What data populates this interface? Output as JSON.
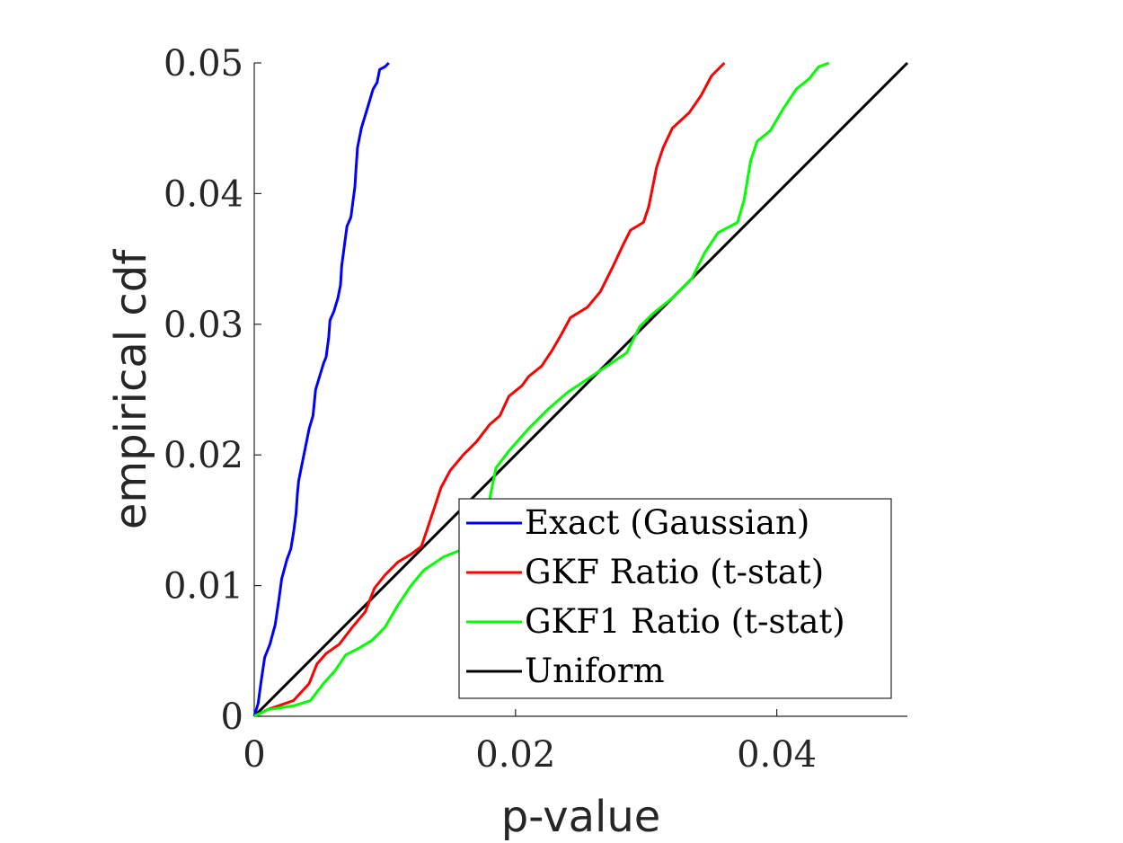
{
  "chart_data": {
    "type": "line",
    "title": "",
    "xlabel": "p-value",
    "ylabel": "empirical cdf",
    "xlim": [
      0,
      0.05
    ],
    "ylim": [
      0,
      0.05
    ],
    "x_ticks": [
      0,
      0.02,
      0.04
    ],
    "x_tick_labels": [
      "0",
      "0.02",
      "0.04"
    ],
    "y_ticks": [
      0,
      0.01,
      0.02,
      0.03,
      0.04,
      0.05
    ],
    "y_tick_labels": [
      "0",
      "0.01",
      "0.02",
      "0.03",
      "0.04",
      "0.05"
    ],
    "grid": false,
    "legend_position": "bottom-right",
    "series": [
      {
        "name": "Exact (Gaussian)",
        "color": "#0000ff",
        "points": [
          [
            0,
            0
          ],
          [
            0.0003,
            0.001
          ],
          [
            0.0005,
            0.0025
          ],
          [
            0.0008,
            0.0045
          ],
          [
            0.0012,
            0.0055
          ],
          [
            0.0016,
            0.007
          ],
          [
            0.0019,
            0.009
          ],
          [
            0.0021,
            0.0105
          ],
          [
            0.0025,
            0.012
          ],
          [
            0.0028,
            0.0128
          ],
          [
            0.003,
            0.014
          ],
          [
            0.0032,
            0.0155
          ],
          [
            0.0033,
            0.017
          ],
          [
            0.0034,
            0.018
          ],
          [
            0.0036,
            0.019
          ],
          [
            0.0039,
            0.0205
          ],
          [
            0.0042,
            0.022
          ],
          [
            0.0045,
            0.023
          ],
          [
            0.0047,
            0.025
          ],
          [
            0.005,
            0.026
          ],
          [
            0.0053,
            0.027
          ],
          [
            0.0055,
            0.0275
          ],
          [
            0.0057,
            0.029
          ],
          [
            0.0058,
            0.0303
          ],
          [
            0.0061,
            0.031
          ],
          [
            0.0064,
            0.032
          ],
          [
            0.0066,
            0.033
          ],
          [
            0.0067,
            0.0345
          ],
          [
            0.0069,
            0.036
          ],
          [
            0.0071,
            0.0375
          ],
          [
            0.0074,
            0.0382
          ],
          [
            0.0075,
            0.039
          ],
          [
            0.0077,
            0.0405
          ],
          [
            0.0078,
            0.042
          ],
          [
            0.0079,
            0.0435
          ],
          [
            0.0082,
            0.045
          ],
          [
            0.0085,
            0.046
          ],
          [
            0.0088,
            0.047
          ],
          [
            0.0091,
            0.048
          ],
          [
            0.0094,
            0.0485
          ],
          [
            0.0096,
            0.0495
          ],
          [
            0.01,
            0.0497
          ],
          [
            0.0103,
            0.05
          ]
        ]
      },
      {
        "name": "GKF Ratio (t-stat)",
        "color": "#ff0000",
        "points": [
          [
            0,
            0
          ],
          [
            0.001,
            0.0005
          ],
          [
            0.003,
            0.0012
          ],
          [
            0.0042,
            0.0025
          ],
          [
            0.0048,
            0.004
          ],
          [
            0.0055,
            0.0048
          ],
          [
            0.0065,
            0.0055
          ],
          [
            0.0075,
            0.0068
          ],
          [
            0.0085,
            0.008
          ],
          [
            0.0092,
            0.0098
          ],
          [
            0.01,
            0.0108
          ],
          [
            0.011,
            0.0118
          ],
          [
            0.012,
            0.0124
          ],
          [
            0.0128,
            0.013
          ],
          [
            0.0133,
            0.0145
          ],
          [
            0.0138,
            0.016
          ],
          [
            0.0143,
            0.0175
          ],
          [
            0.015,
            0.0188
          ],
          [
            0.016,
            0.02
          ],
          [
            0.017,
            0.021
          ],
          [
            0.018,
            0.0223
          ],
          [
            0.0188,
            0.023
          ],
          [
            0.0195,
            0.0245
          ],
          [
            0.0205,
            0.0253
          ],
          [
            0.021,
            0.026
          ],
          [
            0.022,
            0.0268
          ],
          [
            0.0228,
            0.028
          ],
          [
            0.0235,
            0.0292
          ],
          [
            0.0242,
            0.0305
          ],
          [
            0.0255,
            0.0313
          ],
          [
            0.0265,
            0.0325
          ],
          [
            0.0275,
            0.0345
          ],
          [
            0.0282,
            0.036
          ],
          [
            0.0288,
            0.0372
          ],
          [
            0.0298,
            0.0378
          ],
          [
            0.0302,
            0.039
          ],
          [
            0.0305,
            0.0405
          ],
          [
            0.0308,
            0.042
          ],
          [
            0.0313,
            0.0435
          ],
          [
            0.032,
            0.045
          ],
          [
            0.0333,
            0.0462
          ],
          [
            0.0342,
            0.0475
          ],
          [
            0.035,
            0.049
          ],
          [
            0.036,
            0.05
          ]
        ]
      },
      {
        "name": "GKF1 Ratio (t-stat)",
        "color": "#00ff00",
        "points": [
          [
            0,
            0
          ],
          [
            0.001,
            0.0005
          ],
          [
            0.003,
            0.0008
          ],
          [
            0.0043,
            0.0012
          ],
          [
            0.0053,
            0.0025
          ],
          [
            0.0062,
            0.0035
          ],
          [
            0.007,
            0.0047
          ],
          [
            0.008,
            0.0052
          ],
          [
            0.009,
            0.0058
          ],
          [
            0.01,
            0.0068
          ],
          [
            0.011,
            0.0085
          ],
          [
            0.012,
            0.01
          ],
          [
            0.013,
            0.0112
          ],
          [
            0.0145,
            0.0122
          ],
          [
            0.016,
            0.0128
          ],
          [
            0.0175,
            0.014
          ],
          [
            0.018,
            0.0165
          ],
          [
            0.0185,
            0.019
          ],
          [
            0.0195,
            0.0203
          ],
          [
            0.021,
            0.022
          ],
          [
            0.0225,
            0.0235
          ],
          [
            0.024,
            0.0248
          ],
          [
            0.0255,
            0.0258
          ],
          [
            0.027,
            0.0268
          ],
          [
            0.0285,
            0.0278
          ],
          [
            0.0295,
            0.0298
          ],
          [
            0.0305,
            0.0308
          ],
          [
            0.032,
            0.032
          ],
          [
            0.0335,
            0.0335
          ],
          [
            0.0345,
            0.0355
          ],
          [
            0.0355,
            0.037
          ],
          [
            0.037,
            0.0378
          ],
          [
            0.0375,
            0.0395
          ],
          [
            0.038,
            0.0425
          ],
          [
            0.0385,
            0.044
          ],
          [
            0.0395,
            0.0448
          ],
          [
            0.0405,
            0.0465
          ],
          [
            0.0415,
            0.048
          ],
          [
            0.0425,
            0.0488
          ],
          [
            0.0432,
            0.0497
          ],
          [
            0.044,
            0.05
          ]
        ]
      },
      {
        "name": "Uniform",
        "color": "#000000",
        "points": [
          [
            0,
            0
          ],
          [
            0.05,
            0.05
          ]
        ]
      }
    ]
  }
}
